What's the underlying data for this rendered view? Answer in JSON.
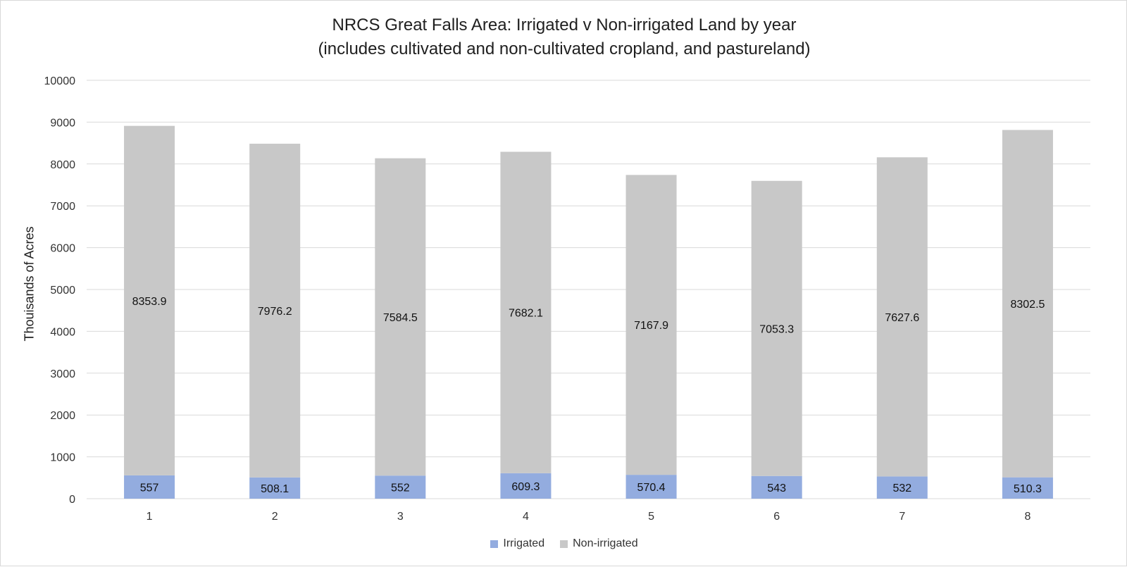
{
  "chart_data": {
    "type": "bar",
    "stacked": true,
    "title": "NRCS Great Falls Area: Irrigated v Non-irrigated Land by year",
    "subtitle": "(includes cultivated and non-cultivated cropland, and pastureland)",
    "xlabel": "",
    "ylabel": "Thouisands of Acres",
    "categories": [
      "1",
      "2",
      "3",
      "4",
      "5",
      "6",
      "7",
      "8"
    ],
    "series": [
      {
        "name": "Irrigated",
        "color": "#93acdf",
        "values": [
          557,
          508.1,
          552,
          609.3,
          570.4,
          543,
          532,
          510.3
        ]
      },
      {
        "name": "Non-irrigated",
        "color": "#c8c8c8",
        "values": [
          8353.9,
          7976.2,
          7584.5,
          7682.1,
          7167.9,
          7053.3,
          7627.6,
          8302.5
        ]
      }
    ],
    "ylim": [
      0,
      10000
    ],
    "yticks": [
      0,
      1000,
      2000,
      3000,
      4000,
      5000,
      6000,
      7000,
      8000,
      9000,
      10000
    ],
    "grid": true,
    "legend": "bottom",
    "data_labels": true
  }
}
